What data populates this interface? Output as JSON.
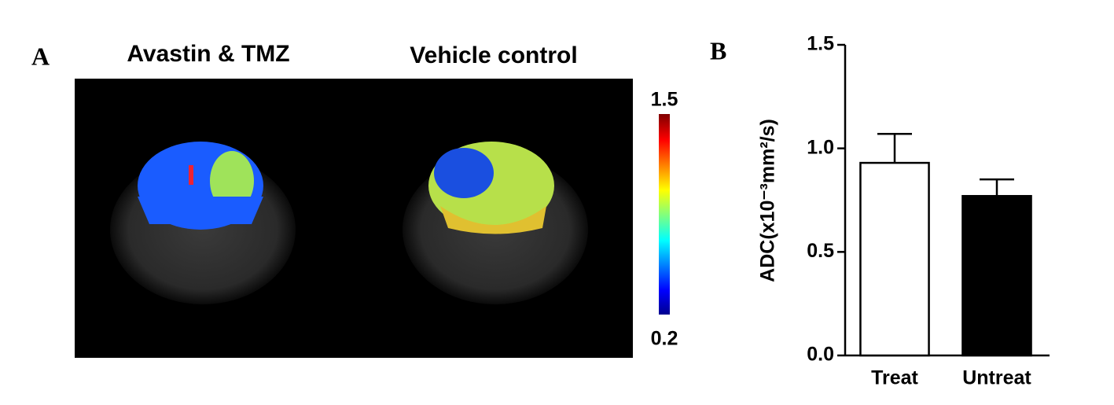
{
  "panel_a": {
    "label": "A",
    "titles": [
      "Avastin & TMZ",
      "Vehicle control"
    ],
    "colorbar_labels": [
      "1.5",
      "0.2"
    ]
  },
  "chart_data": {
    "type": "bar",
    "label": "B",
    "ylabel": "ADC(x10⁻³mm²/s)",
    "categories": [
      "Treat",
      "Untreat"
    ],
    "values": [
      0.93,
      0.77
    ],
    "errors": [
      0.14,
      0.08
    ],
    "colors": [
      "#ffffff",
      "#000000"
    ],
    "ylim": [
      0,
      1.5
    ],
    "yticks": [
      {
        "value": 0,
        "label": "0.0"
      },
      {
        "value": 0.5,
        "label": "0.5"
      },
      {
        "value": 1,
        "label": "1.0"
      },
      1.5
    ]
  }
}
